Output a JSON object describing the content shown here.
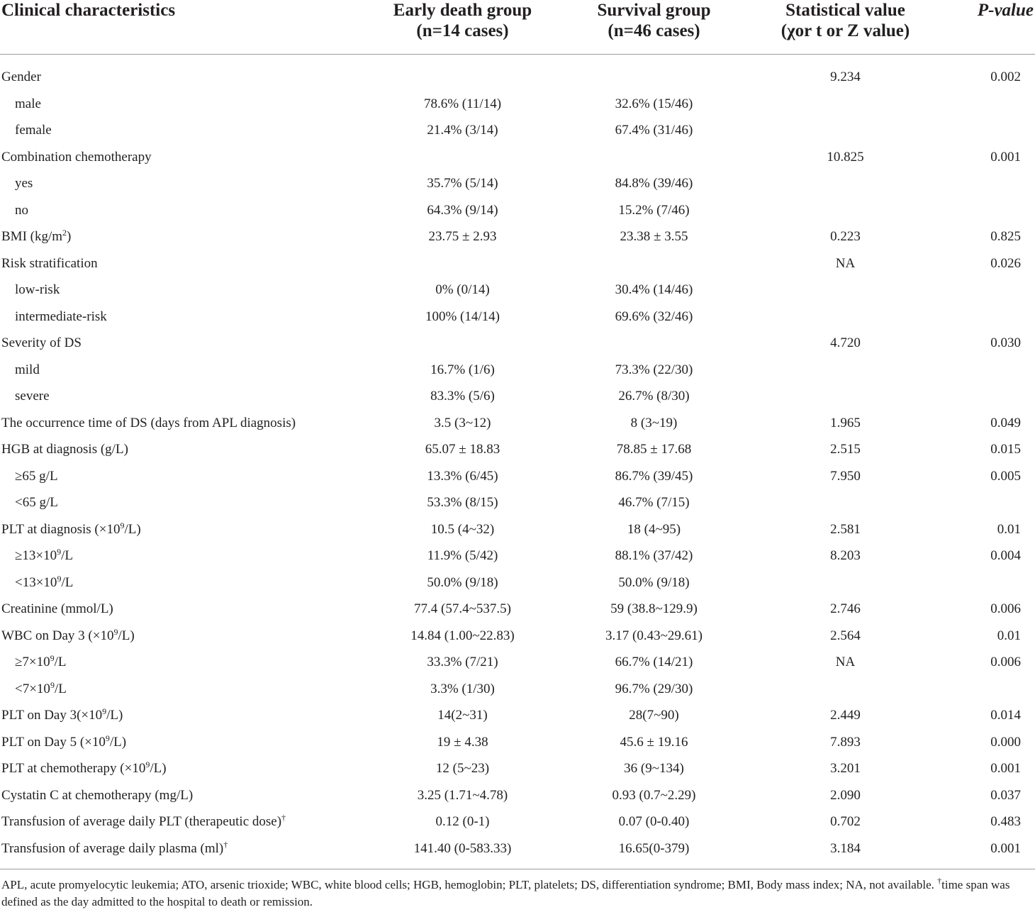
{
  "headers": {
    "characteristic": "Clinical characteristics",
    "early_death": [
      "Early death group",
      "(n=14 cases)"
    ],
    "survival": [
      "Survival group",
      "(n=46 cases)"
    ],
    "statistic": [
      "Statistical value",
      "(χor t or Z value)"
    ],
    "p_value": "P-value"
  },
  "rows": [
    {
      "label": "Gender",
      "early": "",
      "survival": "",
      "stat": "9.234",
      "p": "0.002"
    },
    {
      "label": "male",
      "early": "78.6% (11/14)",
      "survival": "32.6% (15/46)",
      "stat": "",
      "p": ""
    },
    {
      "label": "female",
      "early": "21.4% (3/14)",
      "survival": "67.4% (31/46)",
      "stat": "",
      "p": ""
    },
    {
      "label": "Combination chemotherapy",
      "early": "",
      "survival": "",
      "stat": "10.825",
      "p": "0.001"
    },
    {
      "label": "yes",
      "early": "35.7% (5/14)",
      "survival": "84.8% (39/46)",
      "stat": "",
      "p": ""
    },
    {
      "label": "no",
      "early": "64.3% (9/14)",
      "survival": "15.2% (7/46)",
      "stat": "",
      "p": ""
    },
    {
      "label_pre": "BMI (kg/m",
      "label_sup": "2",
      "label_post": ")",
      "early": "23.75 ± 2.93",
      "survival": "23.38 ± 3.55",
      "stat": "0.223",
      "p": "0.825"
    },
    {
      "label": "Risk stratification",
      "early": "",
      "survival": "",
      "stat": "NA",
      "p": "0.026"
    },
    {
      "label": "low-risk",
      "early": "0% (0/14)",
      "survival": "30.4% (14/46)",
      "stat": "",
      "p": ""
    },
    {
      "label": "intermediate-risk",
      "early": "100% (14/14)",
      "survival": "69.6% (32/46)",
      "stat": "",
      "p": ""
    },
    {
      "label": "Severity of DS",
      "early": "",
      "survival": "",
      "stat": "4.720",
      "p": "0.030"
    },
    {
      "label": "mild",
      "early": "16.7% (1/6)",
      "survival": "73.3% (22/30)",
      "stat": "",
      "p": ""
    },
    {
      "label": "severe",
      "early": "83.3% (5/6)",
      "survival": "26.7% (8/30)",
      "stat": "",
      "p": ""
    },
    {
      "label": "The occurrence time of DS (days from APL diagnosis)",
      "early": "3.5 (3~12)",
      "survival": "8 (3~19)",
      "stat": "1.965",
      "p": "0.049"
    },
    {
      "label": "HGB at diagnosis (g/L)",
      "early": "65.07 ± 18.83",
      "survival": "78.85 ± 17.68",
      "stat": "2.515",
      "p": "0.015"
    },
    {
      "label": "≥65 g/L",
      "early": "13.3% (6/45)",
      "survival": "86.7% (39/45)",
      "stat": "7.950",
      "p": "0.005"
    },
    {
      "label": "<65 g/L",
      "early": "53.3% (8/15)",
      "survival": "46.7% (7/15)",
      "stat": "",
      "p": ""
    },
    {
      "label_pre": "PLT at diagnosis (×10",
      "label_sup": "9",
      "label_post": "/L)",
      "early": "10.5 (4~32)",
      "survival": "18 (4~95)",
      "stat": "2.581",
      "p": "0.01"
    },
    {
      "label_pre": "≥13×10",
      "label_sup": "9",
      "label_post": "/L",
      "early": "11.9% (5/42)",
      "survival": "88.1% (37/42)",
      "stat": "8.203",
      "p": "0.004"
    },
    {
      "label_pre": "<13×10",
      "label_sup": "9",
      "label_post": "/L",
      "early": "50.0% (9/18)",
      "survival": "50.0% (9/18)",
      "stat": "",
      "p": ""
    },
    {
      "label": "Creatinine (mmol/L)",
      "early": "77.4 (57.4~537.5)",
      "survival": "59 (38.8~129.9)",
      "stat": "2.746",
      "p": "0.006"
    },
    {
      "label_pre": "WBC on Day 3 (×10",
      "label_sup": "9",
      "label_post": "/L)",
      "early": "14.84 (1.00~22.83)",
      "survival": "3.17 (0.43~29.61)",
      "stat": "2.564",
      "p": "0.01"
    },
    {
      "label_pre": "≥7×10",
      "label_sup": "9",
      "label_post": "/L",
      "early": "33.3% (7/21)",
      "survival": "66.7% (14/21)",
      "stat": "NA",
      "p": "0.006"
    },
    {
      "label_pre": "<7×10",
      "label_sup": "9",
      "label_post": "/L",
      "early": "3.3% (1/30)",
      "survival": "96.7% (29/30)",
      "stat": "",
      "p": ""
    },
    {
      "label_pre": "PLT on Day 3(×10",
      "label_sup": "9",
      "label_post": "/L)",
      "early": "14(2~31)",
      "survival": "28(7~90)",
      "stat": "2.449",
      "p": "0.014"
    },
    {
      "label_pre": "PLT on Day 5 (×10",
      "label_sup": "9",
      "label_post": "/L)",
      "early": "19 ± 4.38",
      "survival": "45.6 ± 19.16",
      "stat": "7.893",
      "p": "0.000"
    },
    {
      "label_pre": "PLT at chemotherapy (×10",
      "label_sup": "9",
      "label_post": "/L)",
      "early": "12 (5~23)",
      "survival": "36 (9~134)",
      "stat": "3.201",
      "p": "0.001"
    },
    {
      "label": "Cystatin C at chemotherapy (mg/L)",
      "early": "3.25 (1.71~4.78)",
      "survival": "0.93 (0.7~2.29)",
      "stat": "2.090",
      "p": "0.037"
    },
    {
      "label_pre": "Transfusion of average daily PLT (therapeutic dose)",
      "label_sup": "†",
      "label_post": "",
      "early": "0.12 (0-1)",
      "survival": "0.07 (0-0.40)",
      "stat": "0.702",
      "p": "0.483"
    },
    {
      "label_pre": "Transfusion of average daily plasma (ml)",
      "label_sup": "†",
      "label_post": "",
      "early": "141.40 (0-583.33)",
      "survival": "16.65(0-379)",
      "stat": "3.184",
      "p": "0.001"
    }
  ],
  "footnote": {
    "abbrev": "APL, acute promyelocytic leukemia; ATO, arsenic trioxide; WBC, white blood cells; HGB, hemoglobin; PLT, platelets; DS, differentiation syndrome; BMI, Body mass index; NA, not available.",
    "dagger": "†",
    "note": "time span was defined as the day admitted to the hospital to death or remission."
  }
}
